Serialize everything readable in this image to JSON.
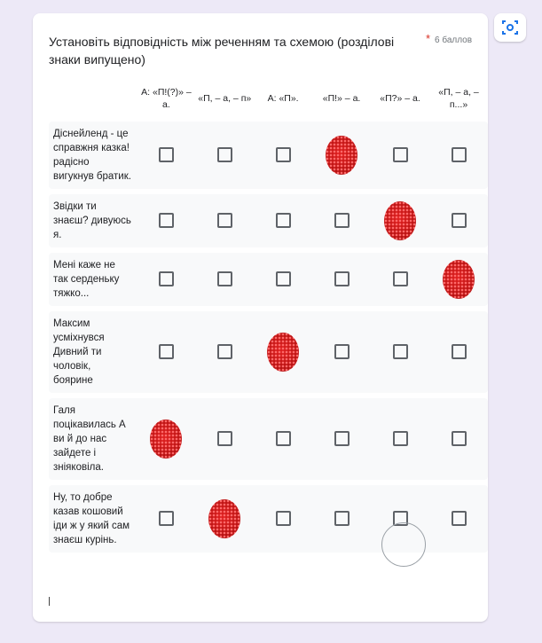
{
  "question": {
    "title": "Установіть відповідність між реченням та схемою (розділові знаки випущено)",
    "required": "*",
    "points": "6 баллов"
  },
  "grid": {
    "columns": [
      "А: «П!(?)» – а.",
      "«П, – а, – п»",
      "А: «П».",
      "«П!» – а.",
      "«П?» – а.",
      "«П, – а, – п...»"
    ],
    "rows": [
      {
        "label": "Діснейленд - це справжня казка! радісно вигукнув братик.",
        "marked": 3
      },
      {
        "label": "Звідки ти знаєш? дивуюсь я.",
        "marked": 4
      },
      {
        "label": "Мені  каже не так серденьку тяжко...",
        "marked": 5
      },
      {
        "label": "Максим усміхнувся Дивний ти чоловік, боярине",
        "marked": 2
      },
      {
        "label": "Галя поцікавилась А ви й до нас зайдете  і зніяковіла.",
        "marked": 0
      },
      {
        "label": "Ну, то добре казав кошовий  іди ж у який сам знаєш курінь.",
        "marked": 1
      }
    ]
  }
}
